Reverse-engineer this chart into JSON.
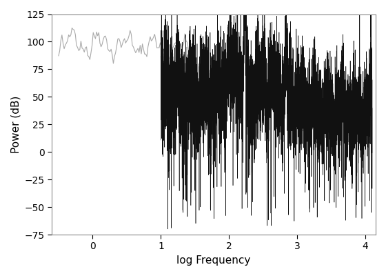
{
  "title": "",
  "xlabel": "log Frequency",
  "ylabel": "Power (dB)",
  "xlim": [
    -0.6,
    4.15
  ],
  "ylim": [
    -75,
    125
  ],
  "yticks": [
    -75,
    -50,
    -25,
    0,
    25,
    50,
    75,
    100,
    125
  ],
  "xticks": [
    0,
    1,
    2,
    3,
    4
  ],
  "gray_color": "#aaaaaa",
  "black_color": "#111111",
  "figsize": [
    5.6,
    4.0
  ],
  "dpi": 100,
  "seed": 42
}
